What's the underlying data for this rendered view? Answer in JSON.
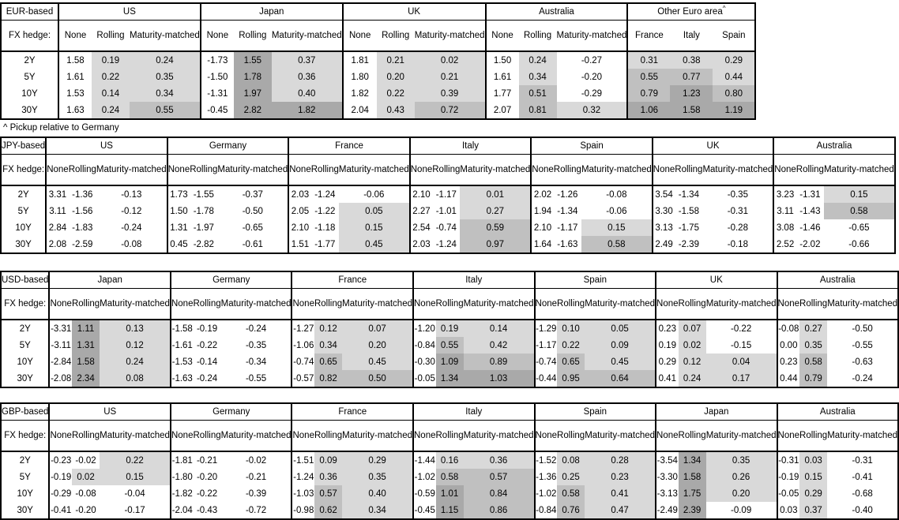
{
  "footnote": "^ Pickup relative to Germany",
  "fx_hedge_label": "FX hedge:",
  "row_labels": [
    "2Y",
    "5Y",
    "10Y",
    "30Y"
  ],
  "hedge_cols": [
    "None",
    "Rolling",
    "Maturity-matched"
  ],
  "shade_colors": {
    "light": "#d9d9d9",
    "medium": "#c0c0c0",
    "dark": "#a9a9a9"
  },
  "sections": [
    {
      "label": "EUR-based",
      "groups": [
        {
          "name": "US",
          "cols": [
            "None",
            "Rolling",
            "Maturity-matched"
          ],
          "rows": [
            [
              "1.58",
              "0.19",
              "0.24"
            ],
            [
              "1.61",
              "0.22",
              "0.35"
            ],
            [
              "1.53",
              "0.14",
              "0.34"
            ],
            [
              "1.63",
              "0.24",
              "0.55"
            ]
          ]
        },
        {
          "name": "Japan",
          "cols": [
            "None",
            "Rolling",
            "Maturity-matched"
          ],
          "rows": [
            [
              "-1.73",
              "1.55",
              "0.37"
            ],
            [
              "-1.50",
              "1.78",
              "0.36"
            ],
            [
              "-1.31",
              "1.97",
              "0.40"
            ],
            [
              "-0.45",
              "2.82",
              "1.82"
            ]
          ]
        },
        {
          "name": "UK",
          "cols": [
            "None",
            "Rolling",
            "Maturity-matched"
          ],
          "rows": [
            [
              "1.81",
              "0.21",
              "0.02"
            ],
            [
              "1.80",
              "0.20",
              "0.21"
            ],
            [
              "1.82",
              "0.22",
              "0.39"
            ],
            [
              "2.04",
              "0.43",
              "0.72"
            ]
          ]
        },
        {
          "name": "Australia",
          "cols": [
            "None",
            "Rolling",
            "Maturity-matched"
          ],
          "rows": [
            [
              "1.50",
              "0.24",
              "-0.27"
            ],
            [
              "1.61",
              "0.34",
              "-0.20"
            ],
            [
              "1.77",
              "0.51",
              "-0.29"
            ],
            [
              "2.07",
              "0.81",
              "0.32"
            ]
          ]
        },
        {
          "name": "Other Euro area",
          "sup": "^",
          "shade_all": true,
          "cols": [
            "France",
            "Italy",
            "Spain"
          ],
          "rows": [
            [
              "0.31",
              "0.38",
              "0.29"
            ],
            [
              "0.55",
              "0.77",
              "0.44"
            ],
            [
              "0.79",
              "1.23",
              "0.80"
            ],
            [
              "1.06",
              "1.58",
              "1.19"
            ]
          ]
        }
      ]
    },
    {
      "label": "JPY-based",
      "groups": [
        {
          "name": "US",
          "cols": [
            "None",
            "Rolling",
            "Maturity-matched"
          ],
          "rows": [
            [
              "3.31",
              "-1.36",
              "-0.13"
            ],
            [
              "3.11",
              "-1.56",
              "-0.12"
            ],
            [
              "2.84",
              "-1.83",
              "-0.24"
            ],
            [
              "2.08",
              "-2.59",
              "-0.08"
            ]
          ]
        },
        {
          "name": "Germany",
          "cols": [
            "None",
            "Rolling",
            "Maturity-matched"
          ],
          "rows": [
            [
              "1.73",
              "-1.55",
              "-0.37"
            ],
            [
              "1.50",
              "-1.78",
              "-0.50"
            ],
            [
              "1.31",
              "-1.97",
              "-0.65"
            ],
            [
              "0.45",
              "-2.82",
              "-0.61"
            ]
          ]
        },
        {
          "name": "France",
          "cols": [
            "None",
            "Rolling",
            "Maturity-matched"
          ],
          "rows": [
            [
              "2.03",
              "-1.24",
              "-0.06"
            ],
            [
              "2.05",
              "-1.22",
              "0.05"
            ],
            [
              "2.10",
              "-1.18",
              "0.15"
            ],
            [
              "1.51",
              "-1.77",
              "0.45"
            ]
          ]
        },
        {
          "name": "Italy",
          "cols": [
            "None",
            "Rolling",
            "Maturity-matched"
          ],
          "rows": [
            [
              "2.10",
              "-1.17",
              "0.01"
            ],
            [
              "2.27",
              "-1.01",
              "0.27"
            ],
            [
              "2.54",
              "-0.74",
              "0.59"
            ],
            [
              "2.03",
              "-1.24",
              "0.97"
            ]
          ]
        },
        {
          "name": "Spain",
          "cols": [
            "None",
            "Rolling",
            "Maturity-matched"
          ],
          "rows": [
            [
              "2.02",
              "-1.26",
              "-0.08"
            ],
            [
              "1.94",
              "-1.34",
              "-0.06"
            ],
            [
              "2.10",
              "-1.17",
              "0.15"
            ],
            [
              "1.64",
              "-1.63",
              "0.58"
            ]
          ]
        },
        {
          "name": "UK",
          "cols": [
            "None",
            "Rolling",
            "Maturity-matched"
          ],
          "rows": [
            [
              "3.54",
              "-1.34",
              "-0.35"
            ],
            [
              "3.30",
              "-1.58",
              "-0.31"
            ],
            [
              "3.13",
              "-1.75",
              "-0.28"
            ],
            [
              "2.49",
              "-2.39",
              "-0.18"
            ]
          ]
        },
        {
          "name": "Australia",
          "cols": [
            "None",
            "Rolling",
            "Maturity-matched"
          ],
          "rows": [
            [
              "3.23",
              "-1.31",
              "0.15"
            ],
            [
              "3.11",
              "-1.43",
              "0.58"
            ],
            [
              "3.08",
              "-1.46",
              "-0.65"
            ],
            [
              "2.52",
              "-2.02",
              "-0.66"
            ]
          ]
        }
      ]
    },
    {
      "label": "USD-based",
      "groups": [
        {
          "name": "Japan",
          "cols": [
            "None",
            "Rolling",
            "Maturity-matched"
          ],
          "rows": [
            [
              "-3.31",
              "1.11",
              "0.13"
            ],
            [
              "-3.11",
              "1.31",
              "0.12"
            ],
            [
              "-2.84",
              "1.58",
              "0.24"
            ],
            [
              "-2.08",
              "2.34",
              "0.08"
            ]
          ]
        },
        {
          "name": "Germany",
          "cols": [
            "None",
            "Rolling",
            "Maturity-matched"
          ],
          "rows": [
            [
              "-1.58",
              "-0.19",
              "-0.24"
            ],
            [
              "-1.61",
              "-0.22",
              "-0.35"
            ],
            [
              "-1.53",
              "-0.14",
              "-0.34"
            ],
            [
              "-1.63",
              "-0.24",
              "-0.55"
            ]
          ]
        },
        {
          "name": "France",
          "cols": [
            "None",
            "Rolling",
            "Maturity-matched"
          ],
          "rows": [
            [
              "-1.27",
              "0.12",
              "0.07"
            ],
            [
              "-1.06",
              "0.34",
              "0.20"
            ],
            [
              "-0.74",
              "0.65",
              "0.45"
            ],
            [
              "-0.57",
              "0.82",
              "0.50"
            ]
          ]
        },
        {
          "name": "Italy",
          "cols": [
            "None",
            "Rolling",
            "Maturity-matched"
          ],
          "rows": [
            [
              "-1.20",
              "0.19",
              "0.14"
            ],
            [
              "-0.84",
              "0.55",
              "0.42"
            ],
            [
              "-0.30",
              "1.09",
              "0.89"
            ],
            [
              "-0.05",
              "1.34",
              "1.03"
            ]
          ]
        },
        {
          "name": "Spain",
          "cols": [
            "None",
            "Rolling",
            "Maturity-matched"
          ],
          "rows": [
            [
              "-1.29",
              "0.10",
              "0.05"
            ],
            [
              "-1.17",
              "0.22",
              "0.09"
            ],
            [
              "-0.74",
              "0.65",
              "0.45"
            ],
            [
              "-0.44",
              "0.95",
              "0.64"
            ]
          ]
        },
        {
          "name": "UK",
          "cols": [
            "None",
            "Rolling",
            "Maturity-matched"
          ],
          "rows": [
            [
              "0.23",
              "0.07",
              "-0.22"
            ],
            [
              "0.19",
              "0.02",
              "-0.15"
            ],
            [
              "0.29",
              "0.12",
              "0.04"
            ],
            [
              "0.41",
              "0.24",
              "0.17"
            ]
          ]
        },
        {
          "name": "Australia",
          "cols": [
            "None",
            "Rolling",
            "Maturity-matched"
          ],
          "rows": [
            [
              "-0.08",
              "0.27",
              "-0.50"
            ],
            [
              "0.00",
              "0.35",
              "-0.55"
            ],
            [
              "0.23",
              "0.58",
              "-0.63"
            ],
            [
              "0.44",
              "0.79",
              "-0.24"
            ]
          ]
        }
      ]
    },
    {
      "label": "GBP-based",
      "groups": [
        {
          "name": "US",
          "cols": [
            "None",
            "Rolling",
            "Maturity-matched"
          ],
          "rows": [
            [
              "-0.23",
              "-0.02",
              "0.22"
            ],
            [
              "-0.19",
              "0.02",
              "0.15"
            ],
            [
              "-0.29",
              "-0.08",
              "-0.04"
            ],
            [
              "-0.41",
              "-0.20",
              "-0.17"
            ]
          ]
        },
        {
          "name": "Germany",
          "cols": [
            "None",
            "Rolling",
            "Maturity-matched"
          ],
          "rows": [
            [
              "-1.81",
              "-0.21",
              "-0.02"
            ],
            [
              "-1.80",
              "-0.20",
              "-0.21"
            ],
            [
              "-1.82",
              "-0.22",
              "-0.39"
            ],
            [
              "-2.04",
              "-0.43",
              "-0.72"
            ]
          ]
        },
        {
          "name": "France",
          "cols": [
            "None",
            "Rolling",
            "Maturity-matched"
          ],
          "rows": [
            [
              "-1.51",
              "0.09",
              "0.29"
            ],
            [
              "-1.24",
              "0.36",
              "0.35"
            ],
            [
              "-1.03",
              "0.57",
              "0.40"
            ],
            [
              "-0.98",
              "0.62",
              "0.34"
            ]
          ]
        },
        {
          "name": "Italy",
          "cols": [
            "None",
            "Rolling",
            "Maturity-matched"
          ],
          "rows": [
            [
              "-1.44",
              "0.16",
              "0.36"
            ],
            [
              "-1.02",
              "0.58",
              "0.57"
            ],
            [
              "-0.59",
              "1.01",
              "0.84"
            ],
            [
              "-0.45",
              "1.15",
              "0.86"
            ]
          ]
        },
        {
          "name": "Spain",
          "cols": [
            "None",
            "Rolling",
            "Maturity-matched"
          ],
          "rows": [
            [
              "-1.52",
              "0.08",
              "0.28"
            ],
            [
              "-1.36",
              "0.25",
              "0.23"
            ],
            [
              "-1.02",
              "0.58",
              "0.41"
            ],
            [
              "-0.84",
              "0.76",
              "0.47"
            ]
          ]
        },
        {
          "name": "Japan",
          "cols": [
            "None",
            "Rolling",
            "Maturity-matched"
          ],
          "rows": [
            [
              "-3.54",
              "1.34",
              "0.35"
            ],
            [
              "-3.30",
              "1.58",
              "0.26"
            ],
            [
              "-3.13",
              "1.75",
              "0.20"
            ],
            [
              "-2.49",
              "2.39",
              "-0.09"
            ]
          ]
        },
        {
          "name": "Australia",
          "cols": [
            "None",
            "Rolling",
            "Maturity-matched"
          ],
          "rows": [
            [
              "-0.31",
              "0.03",
              "-0.31"
            ],
            [
              "-0.19",
              "0.15",
              "-0.41"
            ],
            [
              "-0.05",
              "0.29",
              "-0.68"
            ],
            [
              "0.03",
              "0.37",
              "-0.40"
            ]
          ]
        }
      ]
    }
  ]
}
